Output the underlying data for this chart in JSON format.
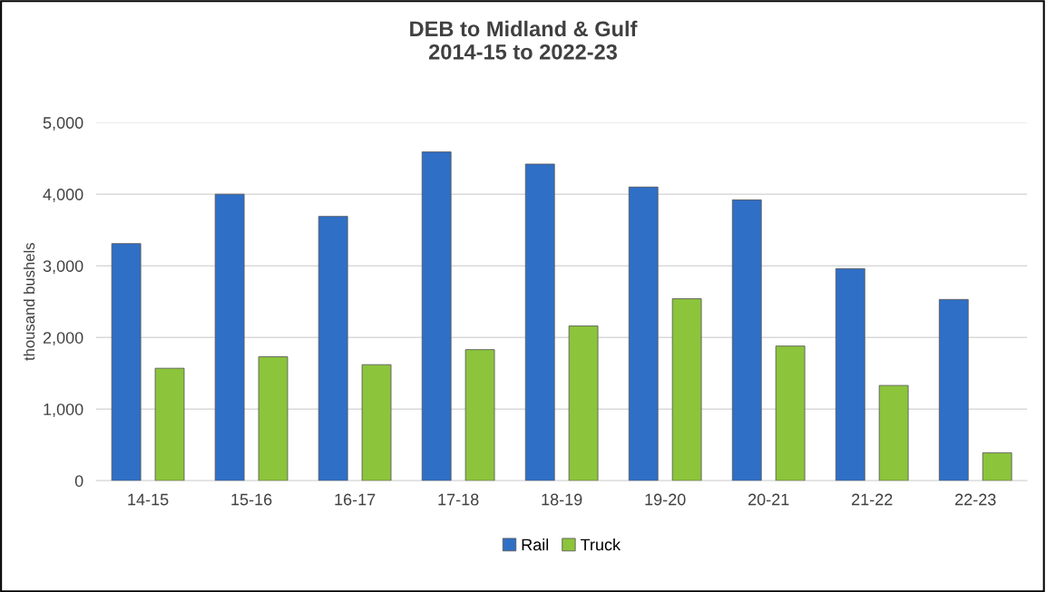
{
  "chart_data": {
    "type": "bar",
    "title": "DEB to Midland & Gulf\n2014-15 to 2022-23",
    "ylabel": "thousand bushels",
    "categories": [
      "14-15",
      "15-16",
      "16-17",
      "17-18",
      "18-19",
      "19-20",
      "20-21",
      "21-22",
      "22-23"
    ],
    "series": [
      {
        "name": "Rail",
        "color": "#2f6fc6",
        "values": [
          3310,
          4000,
          3690,
          4590,
          4420,
          4100,
          3920,
          2960,
          2530
        ]
      },
      {
        "name": "Truck",
        "color": "#8cc43c",
        "values": [
          1570,
          1730,
          1620,
          1830,
          2160,
          2540,
          1880,
          1330,
          390
        ]
      }
    ],
    "ylim": [
      0,
      5000
    ],
    "yticks": [
      {
        "value": 0,
        "label": "0"
      },
      {
        "value": 1000,
        "label": "1,000"
      },
      {
        "value": 2000,
        "label": "2,000"
      },
      {
        "value": 3000,
        "label": "3,000"
      },
      {
        "value": 4000,
        "label": "4,000"
      },
      {
        "value": 5000,
        "label": "5,000"
      }
    ],
    "grid": "y",
    "legend": "bottom"
  }
}
